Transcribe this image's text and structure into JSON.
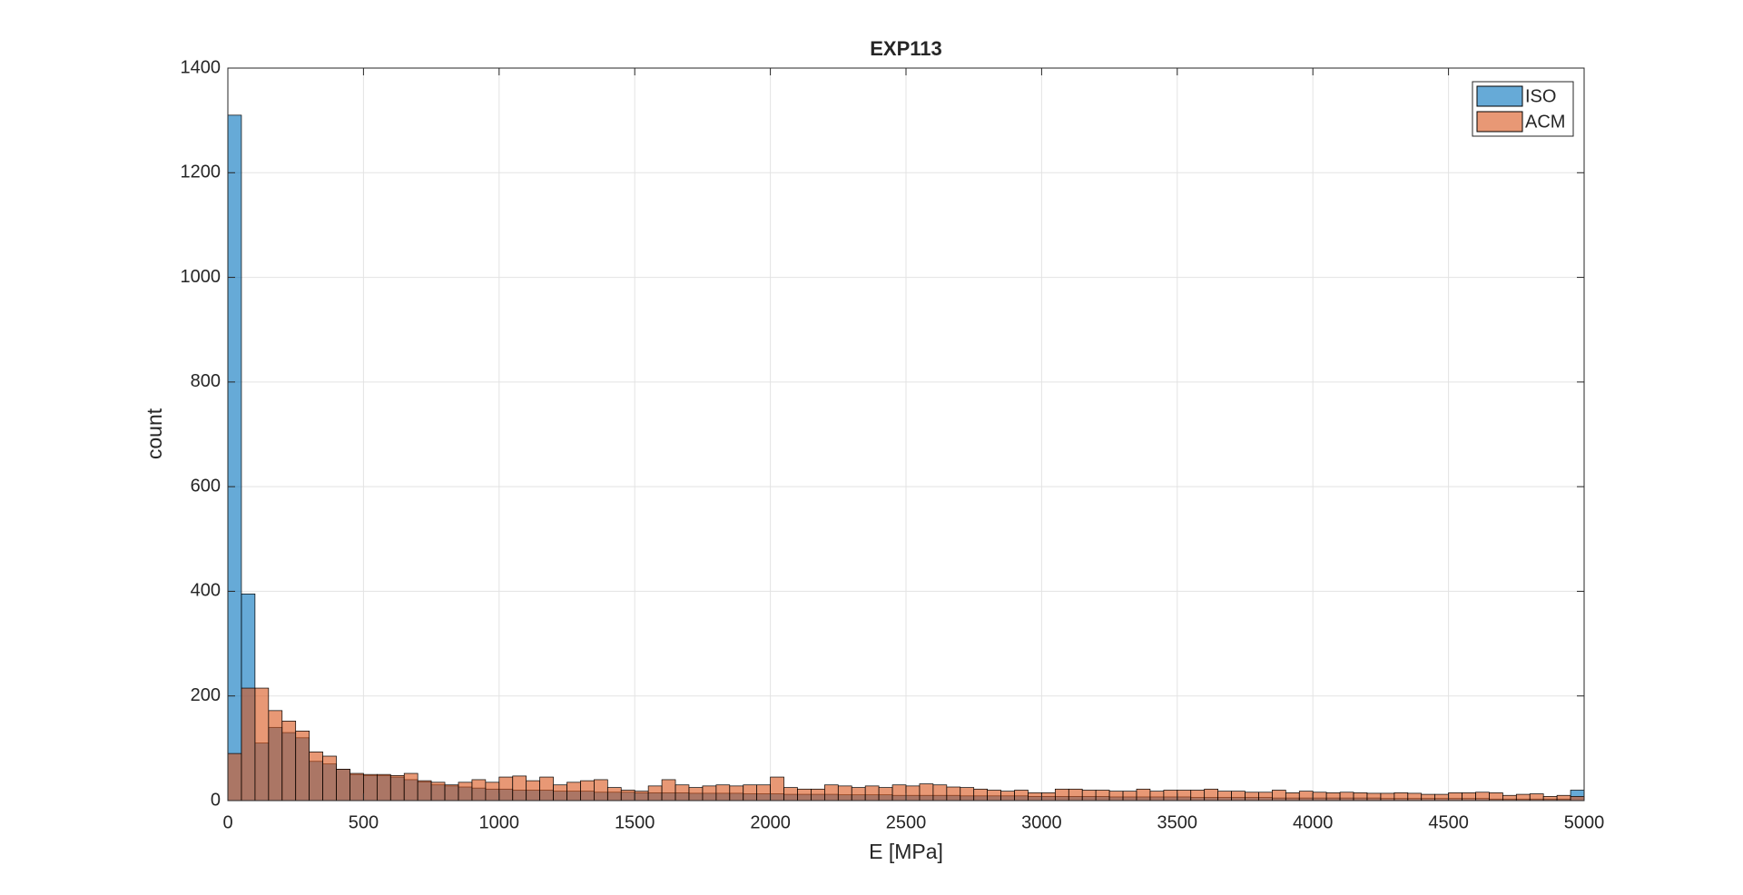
{
  "chart_data": {
    "type": "histogram",
    "title": "EXP113",
    "xlabel": "E [MPa]",
    "ylabel": "count",
    "bins": [
      0,
      50,
      100,
      150,
      200,
      250,
      300,
      350,
      400,
      450,
      500,
      550,
      600,
      650,
      700,
      750,
      800,
      850,
      900,
      950,
      1000,
      1050,
      1100,
      1150,
      1200,
      1250,
      1300,
      1350,
      1400,
      1450,
      1500,
      1550,
      1600,
      1650,
      1700,
      1750,
      1800,
      1850,
      1900,
      1950,
      2000,
      2050,
      2100,
      2150,
      2200,
      2250,
      2300,
      2350,
      2400,
      2450,
      2500,
      2550,
      2600,
      2650,
      2700,
      2750,
      2800,
      2850,
      2900,
      2950,
      3000,
      3050,
      3100,
      3150,
      3200,
      3250,
      3300,
      3350,
      3400,
      3450,
      3500,
      3550,
      3600,
      3650,
      3700,
      3750,
      3800,
      3850,
      3900,
      3950,
      4000,
      4050,
      4100,
      4150,
      4200,
      4250,
      4300,
      4350,
      4400,
      4450,
      4500,
      4550,
      4600,
      4650,
      4700,
      4750,
      4800,
      4850,
      4900,
      4950,
      5000
    ],
    "series": [
      {
        "name": "ISO",
        "color": "#0072bd",
        "values": [
          1310,
          395,
          110,
          140,
          130,
          120,
          75,
          70,
          60,
          50,
          48,
          48,
          45,
          40,
          36,
          30,
          28,
          26,
          24,
          22,
          22,
          20,
          20,
          20,
          18,
          18,
          18,
          16,
          16,
          16,
          15,
          15,
          15,
          15,
          14,
          14,
          14,
          14,
          13,
          13,
          13,
          12,
          12,
          12,
          12,
          11,
          11,
          11,
          11,
          10,
          10,
          10,
          10,
          10,
          9,
          9,
          9,
          9,
          9,
          8,
          8,
          8,
          8,
          8,
          8,
          7,
          7,
          7,
          7,
          7,
          7,
          6,
          6,
          6,
          6,
          6,
          6,
          5,
          5,
          5,
          5,
          5,
          5,
          5,
          5,
          4,
          4,
          4,
          4,
          4,
          4,
          4,
          4,
          3,
          3,
          3,
          3,
          3,
          3,
          20
        ]
      },
      {
        "name": "ACM",
        "color": "#d95319",
        "values": [
          90,
          215,
          215,
          172,
          152,
          133,
          93,
          85,
          60,
          52,
          50,
          50,
          48,
          52,
          38,
          35,
          30,
          35,
          40,
          35,
          45,
          47,
          38,
          45,
          30,
          35,
          38,
          40,
          25,
          20,
          18,
          28,
          40,
          30,
          25,
          28,
          30,
          28,
          30,
          30,
          45,
          25,
          22,
          22,
          30,
          28,
          25,
          28,
          25,
          30,
          28,
          32,
          30,
          26,
          25,
          22,
          20,
          18,
          20,
          15,
          15,
          22,
          22,
          20,
          20,
          18,
          18,
          22,
          18,
          20,
          20,
          20,
          22,
          18,
          18,
          16,
          16,
          20,
          15,
          18,
          16,
          15,
          16,
          15,
          14,
          14,
          15,
          14,
          12,
          12,
          15,
          15,
          16,
          15,
          10,
          12,
          13,
          8,
          10,
          8
        ]
      }
    ],
    "xlim": [
      0,
      5000
    ],
    "ylim": [
      0,
      1400
    ],
    "xticks": [
      0,
      500,
      1000,
      1500,
      2000,
      2500,
      3000,
      3500,
      4000,
      4500,
      5000
    ],
    "yticks": [
      0,
      200,
      400,
      600,
      800,
      1000,
      1200,
      1400
    ],
    "grid": true,
    "legend": "northeast"
  }
}
